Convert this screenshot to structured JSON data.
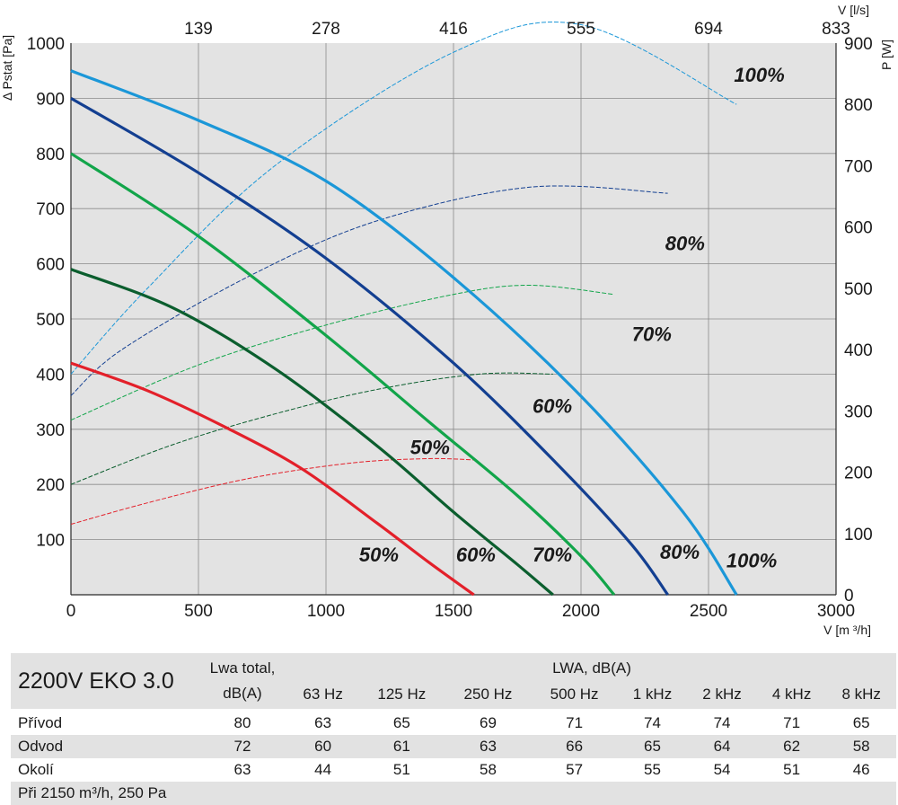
{
  "chart_data": {
    "type": "line",
    "xlabel": "V [m ³/h]",
    "ylabel": "Δ Pstat [Pa]",
    "y2label": "P [W]",
    "x2label": "V [l/s]",
    "xlim": [
      0,
      3000
    ],
    "ylim": [
      0,
      1000
    ],
    "y2lim": [
      0,
      900
    ],
    "x_ticks": [
      0,
      500,
      1000,
      1500,
      2000,
      2500,
      3000
    ],
    "y_ticks": [
      100,
      200,
      300,
      400,
      500,
      600,
      700,
      800,
      900,
      1000
    ],
    "y2_ticks": [
      0,
      100,
      200,
      300,
      400,
      500,
      600,
      700,
      800,
      900
    ],
    "x2_ticks": [
      "139",
      "278",
      "416",
      "555",
      "694",
      "833"
    ],
    "grid": true,
    "pressure_series": [
      {
        "name": "50%",
        "color": "#e3202a",
        "x": [
          0,
          300,
          600,
          900,
          1200,
          1400,
          1580
        ],
        "y": [
          420,
          370,
          305,
          230,
          130,
          60,
          0
        ]
      },
      {
        "name": "60%",
        "color": "#0b5e2e",
        "x": [
          0,
          400,
          800,
          1200,
          1500,
          1750,
          1890
        ],
        "y": [
          590,
          520,
          410,
          270,
          150,
          55,
          0
        ]
      },
      {
        "name": "70%",
        "color": "#12a54a",
        "x": [
          0,
          500,
          1000,
          1400,
          1750,
          2000,
          2130
        ],
        "y": [
          800,
          650,
          470,
          315,
          180,
          70,
          0
        ]
      },
      {
        "name": "80%",
        "color": "#133f91",
        "x": [
          0,
          500,
          1000,
          1500,
          1900,
          2200,
          2340
        ],
        "y": [
          900,
          765,
          610,
          420,
          240,
          90,
          0
        ]
      },
      {
        "name": "100%",
        "color": "#1b97d8",
        "x": [
          0,
          500,
          1000,
          1500,
          2000,
          2400,
          2610
        ],
        "y": [
          950,
          860,
          750,
          575,
          360,
          150,
          0
        ]
      }
    ],
    "power_series": [
      {
        "name": "50%",
        "color": "#e3202a",
        "x": [
          0,
          300,
          700,
          1100,
          1400,
          1580
        ],
        "y": [
          115,
          150,
          190,
          215,
          222,
          220
        ]
      },
      {
        "name": "60%",
        "color": "#0b5e2e",
        "x": [
          0,
          400,
          800,
          1200,
          1600,
          1890
        ],
        "y": [
          180,
          245,
          295,
          335,
          360,
          360
        ]
      },
      {
        "name": "70%",
        "color": "#12a54a",
        "x": [
          0,
          500,
          1000,
          1500,
          1800,
          2130
        ],
        "y": [
          285,
          375,
          440,
          490,
          505,
          490
        ]
      },
      {
        "name": "80%",
        "color": "#133f91",
        "x": [
          0,
          200,
          700,
          1200,
          1800,
          2340
        ],
        "y": [
          325,
          400,
          520,
          610,
          665,
          655
        ]
      },
      {
        "name": "100%",
        "color": "#1b97d8",
        "x": [
          0,
          300,
          800,
          1500,
          2000,
          2610
        ],
        "y": [
          360,
          500,
          700,
          885,
          930,
          800
        ]
      }
    ],
    "curve_labels": [
      {
        "text": "50%",
        "x": 1130,
        "y": 60
      },
      {
        "text": "60%",
        "x": 1510,
        "y": 60
      },
      {
        "text": "70%",
        "x": 1810,
        "y": 60
      },
      {
        "text": "80%",
        "x": 2310,
        "y": 65
      },
      {
        "text": "100%",
        "x": 2570,
        "y": 50
      },
      {
        "text": "50%",
        "x": 1330,
        "y": 255
      },
      {
        "text": "60%",
        "x": 1810,
        "y": 330
      },
      {
        "text": "70%",
        "x": 2200,
        "y": 460
      },
      {
        "text": "80%",
        "x": 2330,
        "y": 625
      },
      {
        "text": "100%",
        "x": 2600,
        "y": 930
      }
    ]
  },
  "table": {
    "model": "2200V EKO 3.0",
    "lwa_total_line1": "Lwa total,",
    "lwa_total_line2": "dB(A)",
    "lwa_header": "LWA, dB(A)",
    "bands": [
      "63 Hz",
      "125 Hz",
      "250 Hz",
      "500 Hz",
      "1 kHz",
      "2 kHz",
      "4 kHz",
      "8 kHz"
    ],
    "rows": [
      {
        "label": "Přívod",
        "total": "80",
        "values": [
          "63",
          "65",
          "69",
          "71",
          "74",
          "74",
          "71",
          "65"
        ]
      },
      {
        "label": "Odvod",
        "total": "72",
        "values": [
          "60",
          "61",
          "63",
          "66",
          "65",
          "64",
          "62",
          "58"
        ]
      },
      {
        "label": "Okolí",
        "total": "63",
        "values": [
          "44",
          "51",
          "58",
          "57",
          "55",
          "54",
          "51",
          "46"
        ]
      }
    ],
    "footnote": "Při 2150 m³/h, 250 Pa"
  }
}
